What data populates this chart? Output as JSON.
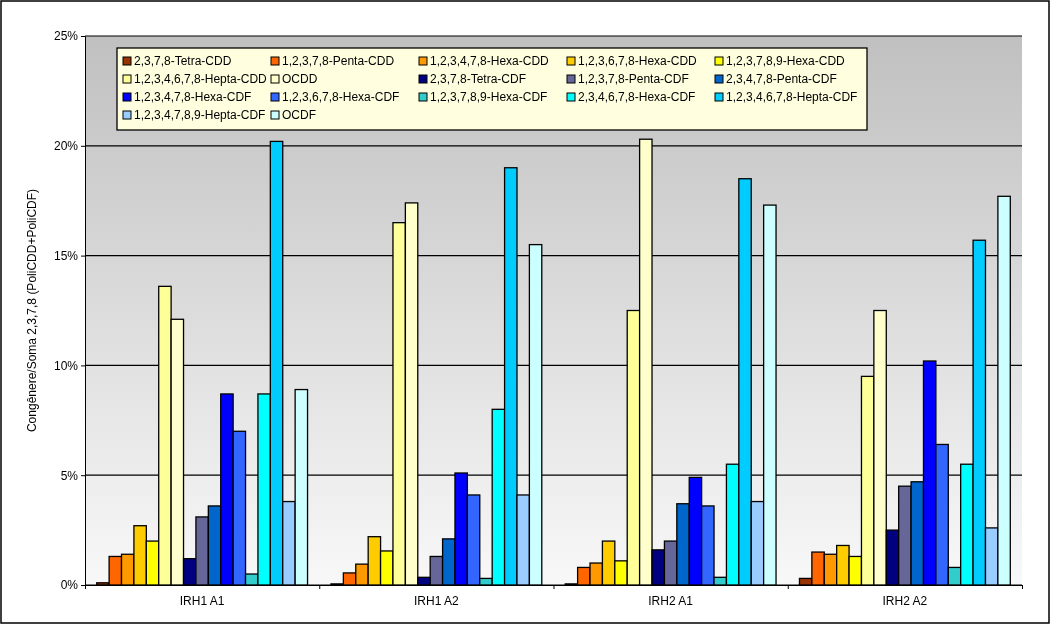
{
  "chart_data": {
    "type": "bar",
    "ylabel": "Congênere/Soma 2,3,7,8 (PoliCDD+PoliCDF)",
    "categories": [
      "IRH1 A1",
      "IRH1 A2",
      "IRH2 A1",
      "IRH2 A2"
    ],
    "ylim": [
      0,
      25
    ],
    "yticks": [
      {
        "value": 0,
        "label": "0%"
      },
      {
        "value": 5,
        "label": "5%"
      },
      {
        "value": 10,
        "label": "10%"
      },
      {
        "value": 15,
        "label": "15%"
      },
      {
        "value": 20,
        "label": "20%"
      },
      {
        "value": 25,
        "label": "25%"
      }
    ],
    "grid": "y",
    "legend": "top",
    "series": [
      {
        "name": "2,3,7,8-Tetra-CDD",
        "color": "#993300",
        "values": [
          0.1,
          0.05,
          0.05,
          0.3
        ]
      },
      {
        "name": "1,2,3,7,8-Penta-CDD",
        "color": "#ff6600",
        "values": [
          1.3,
          0.55,
          0.8,
          1.5
        ]
      },
      {
        "name": "1,2,3,4,7,8-Hexa-CDD",
        "color": "#ff9900",
        "values": [
          1.4,
          0.95,
          1.0,
          1.4
        ]
      },
      {
        "name": "1,2,3,6,7,8-Hexa-CDD",
        "color": "#ffcc00",
        "values": [
          2.7,
          2.2,
          2.0,
          1.8
        ]
      },
      {
        "name": "1,2,3,7,8,9-Hexa-CDD",
        "color": "#ffff00",
        "values": [
          2.0,
          1.55,
          1.1,
          1.3
        ]
      },
      {
        "name": "1,2,3,4,6,7,8-Hepta-CDD",
        "color": "#ffff99",
        "values": [
          13.6,
          16.5,
          12.5,
          9.5
        ]
      },
      {
        "name": "OCDD",
        "color": "#ffffcc",
        "values": [
          12.1,
          17.4,
          20.3,
          12.5
        ]
      },
      {
        "name": "2,3,7,8-Tetra-CDF",
        "color": "#000080",
        "values": [
          1.2,
          0.35,
          1.6,
          2.5
        ]
      },
      {
        "name": "1,2,3,7,8-Penta-CDF",
        "color": "#666699",
        "values": [
          3.1,
          1.3,
          2.0,
          4.5
        ]
      },
      {
        "name": "2,3,4,7,8-Penta-CDF",
        "color": "#0066cc",
        "values": [
          3.6,
          2.1,
          3.7,
          4.7
        ]
      },
      {
        "name": "1,2,3,4,7,8-Hexa-CDF",
        "color": "#0000ff",
        "values": [
          8.7,
          5.1,
          4.9,
          10.2
        ]
      },
      {
        "name": "1,2,3,6,7,8-Hexa-CDF",
        "color": "#3366ff",
        "values": [
          7.0,
          4.1,
          3.6,
          6.4
        ]
      },
      {
        "name": "1,2,3,7,8,9-Hexa-CDF",
        "color": "#33cccc",
        "values": [
          0.5,
          0.3,
          0.35,
          0.8
        ]
      },
      {
        "name": "2,3,4,6,7,8-Hexa-CDF",
        "color": "#00ffff",
        "values": [
          8.7,
          8.0,
          5.5,
          5.5
        ]
      },
      {
        "name": "1,2,3,4,6,7,8-Hepta-CDF",
        "color": "#00ccff",
        "values": [
          20.2,
          19.0,
          18.5,
          15.7
        ]
      },
      {
        "name": "1,2,3,4,7,8,9-Hepta-CDF",
        "color": "#99ccff",
        "values": [
          3.8,
          4.1,
          3.8,
          2.6
        ]
      },
      {
        "name": "OCDF",
        "color": "#ccffff",
        "values": [
          8.9,
          15.5,
          17.3,
          17.7
        ]
      }
    ]
  }
}
